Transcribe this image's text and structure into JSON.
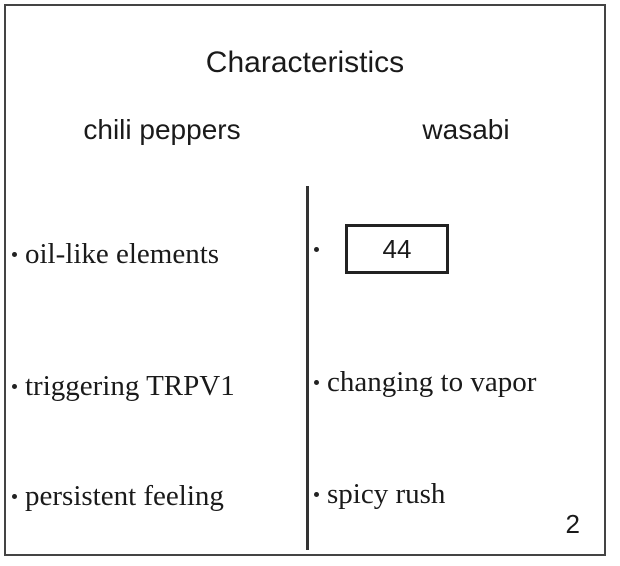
{
  "title": "Characteristics",
  "columns": {
    "left_header": "chili peppers",
    "right_header": "wasabi"
  },
  "left_items": [
    "oil-like elements",
    "triggering TRPV1",
    "persistent feeling"
  ],
  "right_items": {
    "answer_box": "44",
    "item2": "changing to vapor",
    "item3": "spicy rush"
  },
  "page_number": "2"
}
